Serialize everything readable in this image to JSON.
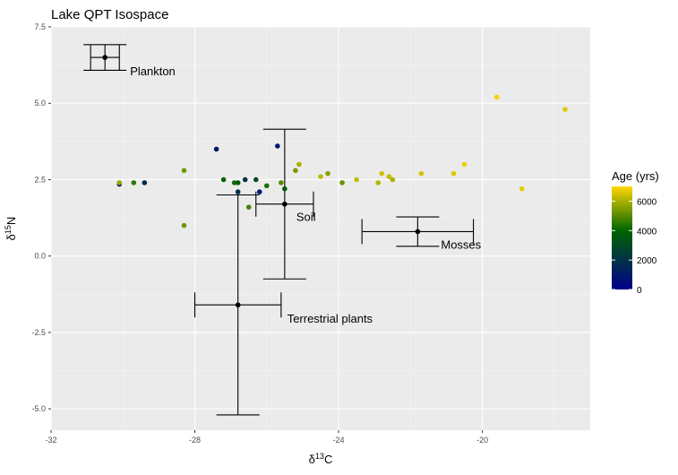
{
  "chart_data": {
    "type": "scatter",
    "title": "Lake QPT Isospace",
    "xlabel": {
      "main": "δ",
      "sup": "13",
      "rest": "C"
    },
    "ylabel": {
      "main": "δ",
      "sup": "15",
      "rest": "N"
    },
    "xlim": [
      -32,
      -17.0
    ],
    "ylim": [
      -5.7,
      7.5
    ],
    "xticks": [
      {
        "value": -32,
        "label": "-32"
      },
      {
        "value": -28,
        "label": "-28"
      },
      {
        "value": -24,
        "label": "-24"
      },
      {
        "value": -20,
        "label": "-20"
      }
    ],
    "yticks": [
      {
        "value": 7.5,
        "label": "7.5"
      },
      {
        "value": 5.0,
        "label": "5.0"
      },
      {
        "value": 2.5,
        "label": "2.5"
      },
      {
        "value": 0.0,
        "label": "0.0"
      },
      {
        "value": -2.5,
        "label": "-2.5"
      },
      {
        "value": -5.0,
        "label": "-5.0"
      }
    ],
    "grid": true,
    "legend": {
      "title": "Age (yrs)",
      "position": "right",
      "min": 0,
      "max": 7000,
      "ticks": [
        {
          "value": 0,
          "label": "0"
        },
        {
          "value": 2000,
          "label": "2000"
        },
        {
          "value": 4000,
          "label": "4000"
        },
        {
          "value": 6000,
          "label": "6000"
        }
      ],
      "colors": [
        "#00008B",
        "#006400",
        "#FFD700"
      ]
    },
    "sources": [
      {
        "label": "Plankton",
        "x": -30.5,
        "y": 6.5,
        "x_err": 0.4,
        "y_err": 0.42
      },
      {
        "label": "Soil",
        "x": -25.5,
        "y": 1.7,
        "x_err": 0.8,
        "y_err": 2.45
      },
      {
        "label": "Mosses",
        "x": -21.8,
        "y": 0.8,
        "x_err": 1.55,
        "y_err": 0.48
      },
      {
        "label": "Terrestrial plants",
        "x": -26.8,
        "y": -1.6,
        "x_err": 1.2,
        "y_err": 3.6
      }
    ],
    "points": [
      {
        "x": -30.1,
        "y": 2.35,
        "age": 500
      },
      {
        "x": -30.1,
        "y": 2.4,
        "age": 5800
      },
      {
        "x": -29.7,
        "y": 2.4,
        "age": 4500
      },
      {
        "x": -29.4,
        "y": 2.4,
        "age": 1500
      },
      {
        "x": -28.3,
        "y": 2.8,
        "age": 5300
      },
      {
        "x": -28.3,
        "y": 1.0,
        "age": 5300
      },
      {
        "x": -27.4,
        "y": 3.5,
        "age": 1000
      },
      {
        "x": -27.2,
        "y": 2.5,
        "age": 4000
      },
      {
        "x": -26.9,
        "y": 2.4,
        "age": 4200
      },
      {
        "x": -26.8,
        "y": 2.4,
        "age": 3700
      },
      {
        "x": -26.8,
        "y": 2.1,
        "age": 1800
      },
      {
        "x": -26.6,
        "y": 2.5,
        "age": 2000
      },
      {
        "x": -26.5,
        "y": 1.6,
        "age": 4800
      },
      {
        "x": -26.3,
        "y": 2.5,
        "age": 3000
      },
      {
        "x": -26.2,
        "y": 2.1,
        "age": 900
      },
      {
        "x": -26.0,
        "y": 2.3,
        "age": 4300
      },
      {
        "x": -25.7,
        "y": 3.6,
        "age": 800
      },
      {
        "x": -25.6,
        "y": 2.4,
        "age": 5000
      },
      {
        "x": -25.5,
        "y": 2.2,
        "age": 3600
      },
      {
        "x": -25.2,
        "y": 2.8,
        "age": 5400
      },
      {
        "x": -25.1,
        "y": 3.0,
        "age": 6000
      },
      {
        "x": -24.5,
        "y": 2.6,
        "age": 6200
      },
      {
        "x": -24.3,
        "y": 2.7,
        "age": 5600
      },
      {
        "x": -23.9,
        "y": 2.4,
        "age": 5200
      },
      {
        "x": -23.5,
        "y": 2.5,
        "age": 6300
      },
      {
        "x": -22.9,
        "y": 2.4,
        "age": 6100
      },
      {
        "x": -22.8,
        "y": 2.7,
        "age": 6400
      },
      {
        "x": -22.6,
        "y": 2.6,
        "age": 6300
      },
      {
        "x": -22.5,
        "y": 2.5,
        "age": 6000
      },
      {
        "x": -21.7,
        "y": 2.7,
        "age": 6500
      },
      {
        "x": -20.8,
        "y": 2.7,
        "age": 6600
      },
      {
        "x": -20.5,
        "y": 3.0,
        "age": 6800
      },
      {
        "x": -19.6,
        "y": 5.2,
        "age": 6900
      },
      {
        "x": -18.9,
        "y": 2.2,
        "age": 6700
      },
      {
        "x": -17.7,
        "y": 4.8,
        "age": 6600
      }
    ]
  }
}
